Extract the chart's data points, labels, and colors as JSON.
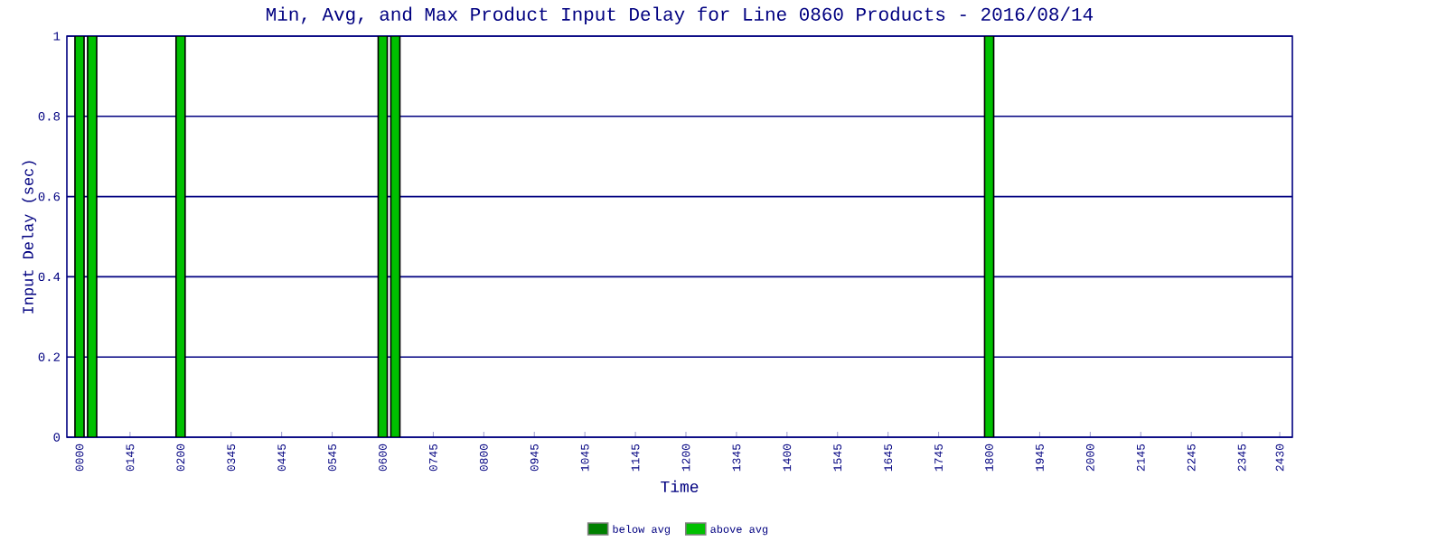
{
  "chart_data": {
    "type": "bar",
    "title": "Min, Avg, and Max Product Input Delay for Line 0860 Products - 2016/08/14",
    "xlabel": "Time",
    "ylabel": "Input Delay (sec)",
    "categories": [
      "0000",
      null,
      null,
      null,
      "0145",
      null,
      null,
      null,
      "0200",
      null,
      null,
      null,
      "0345",
      null,
      null,
      null,
      "0445",
      null,
      null,
      null,
      "0545",
      null,
      null,
      null,
      "0600",
      null,
      null,
      null,
      "0745",
      null,
      null,
      null,
      "0800",
      null,
      null,
      null,
      "0945",
      null,
      null,
      null,
      "1045",
      null,
      null,
      null,
      "1145",
      null,
      null,
      null,
      "1200",
      null,
      null,
      null,
      "1345",
      null,
      null,
      null,
      "1400",
      null,
      null,
      null,
      "1545",
      null,
      null,
      null,
      "1645",
      null,
      null,
      null,
      "1745",
      null,
      null,
      null,
      "1800",
      null,
      null,
      null,
      "1945",
      null,
      null,
      null,
      "2000",
      null,
      null,
      null,
      "2145",
      null,
      null,
      null,
      "2245",
      null,
      null,
      null,
      "2345",
      null,
      null,
      "2430"
    ],
    "stacked": true,
    "series": [
      {
        "name": "below avg",
        "color": "#008000",
        "values": [
          0,
          0,
          null,
          null,
          null,
          null,
          null,
          null,
          0,
          null,
          null,
          null,
          null,
          null,
          null,
          null,
          null,
          null,
          null,
          null,
          null,
          null,
          null,
          null,
          0,
          0,
          null,
          null,
          null,
          null,
          null,
          null,
          null,
          null,
          null,
          null,
          null,
          null,
          null,
          null,
          null,
          null,
          null,
          null,
          null,
          null,
          null,
          null,
          null,
          null,
          null,
          null,
          null,
          null,
          null,
          null,
          null,
          null,
          null,
          null,
          null,
          null,
          null,
          null,
          null,
          null,
          null,
          null,
          null,
          null,
          null,
          null,
          0,
          null,
          null,
          null,
          null,
          null,
          null,
          null,
          null,
          null,
          null,
          null,
          null,
          null,
          null,
          null,
          null,
          null,
          null,
          null,
          null,
          null,
          null,
          null
        ]
      },
      {
        "name": "above avg",
        "color": "#00c000",
        "values": [
          1,
          1,
          null,
          null,
          null,
          null,
          null,
          null,
          1,
          null,
          null,
          null,
          null,
          null,
          null,
          null,
          null,
          null,
          null,
          null,
          null,
          null,
          null,
          null,
          1,
          1,
          null,
          null,
          null,
          null,
          null,
          null,
          null,
          null,
          null,
          null,
          null,
          null,
          null,
          null,
          null,
          null,
          null,
          null,
          null,
          null,
          null,
          null,
          null,
          null,
          null,
          null,
          null,
          null,
          null,
          null,
          null,
          null,
          null,
          null,
          null,
          null,
          null,
          null,
          null,
          null,
          null,
          null,
          null,
          null,
          null,
          null,
          1,
          null,
          null,
          null,
          null,
          null,
          null,
          null,
          null,
          null,
          null,
          null,
          null,
          null,
          null,
          null,
          null,
          null,
          null,
          null,
          null,
          null,
          null,
          null
        ]
      }
    ],
    "ylim": [
      0,
      1
    ],
    "yticks": [
      0,
      0.2,
      0.4,
      0.6,
      0.8,
      1
    ],
    "grid": "y",
    "legend": "bottom"
  }
}
